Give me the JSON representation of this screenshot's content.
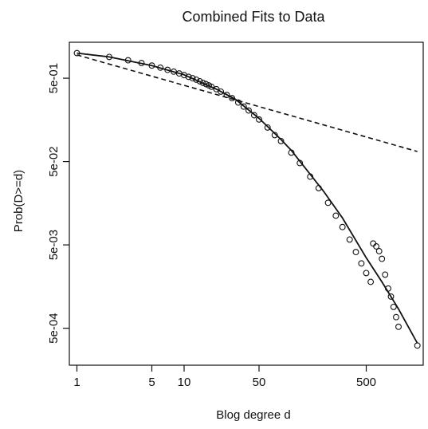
{
  "chart_data": {
    "type": "scatter",
    "title": "Combined Fits to Data",
    "xlabel": "Blog degree d",
    "ylabel": "Prob(D>=d)",
    "x_scale": "log",
    "y_scale": "log",
    "xlim": [
      0.85,
      1700
    ],
    "ylim": [
      0.00018,
      1.35
    ],
    "x_ticks": [
      1,
      5,
      10,
      50,
      500
    ],
    "x_tick_labels": [
      "1",
      "5",
      "10",
      "50",
      "500"
    ],
    "y_ticks": [
      0.0005,
      0.005,
      0.05,
      0.5
    ],
    "y_tick_labels": [
      "5e-04",
      "5e-03",
      "5e-02",
      "5e-01"
    ],
    "grid": false,
    "legend": "none",
    "series": [
      {
        "style": "points (open circles)",
        "x": [
          1,
          2,
          3,
          4,
          5,
          6,
          7,
          8,
          9,
          10,
          11,
          12,
          13,
          14,
          15,
          16,
          17,
          18,
          20,
          22,
          25,
          28,
          32,
          36,
          40,
          45,
          50,
          60,
          70,
          80,
          100,
          120,
          150,
          180,
          220,
          260,
          300,
          350,
          400,
          450,
          500,
          550,
          580,
          620,
          660,
          700,
          750,
          800,
          850,
          900,
          950,
          1000,
          1500
        ],
        "y": [
          1.0,
          0.9,
          0.82,
          0.76,
          0.71,
          0.67,
          0.63,
          0.6,
          0.57,
          0.545,
          0.52,
          0.5,
          0.48,
          0.46,
          0.44,
          0.425,
          0.41,
          0.395,
          0.37,
          0.345,
          0.315,
          0.288,
          0.255,
          0.228,
          0.205,
          0.18,
          0.16,
          0.128,
          0.104,
          0.088,
          0.064,
          0.048,
          0.033,
          0.024,
          0.016,
          0.0112,
          0.0082,
          0.0058,
          0.0041,
          0.003,
          0.0023,
          0.0018,
          0.0052,
          0.0048,
          0.0042,
          0.0034,
          0.0022,
          0.0015,
          0.0012,
          0.0009,
          0.00068,
          0.00052,
          0.00031
        ]
      },
      {
        "style": "solid line",
        "x": [
          1,
          2,
          5,
          10,
          20,
          30,
          50,
          80,
          100,
          200,
          300,
          500,
          700,
          1000,
          1500
        ],
        "y": [
          1.0,
          0.9,
          0.71,
          0.55,
          0.37,
          0.28,
          0.165,
          0.092,
          0.068,
          0.022,
          0.0105,
          0.0035,
          0.0018,
          0.00085,
          0.00033
        ]
      },
      {
        "style": "dashed line",
        "x": [
          1,
          1500
        ],
        "y": [
          0.95,
          0.066
        ]
      }
    ]
  }
}
